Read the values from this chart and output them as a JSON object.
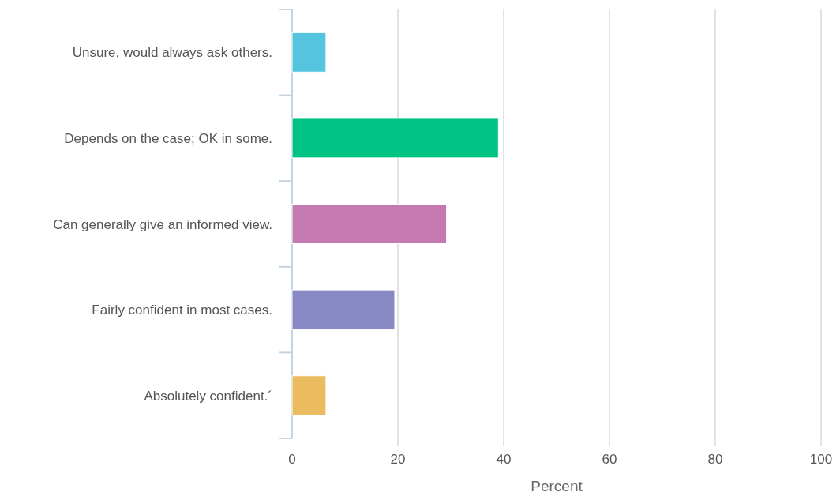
{
  "chart_data": {
    "type": "bar",
    "orientation": "horizontal",
    "xlabel": "Percent",
    "categories": [
      "Unsure, would always ask others.",
      "Depends on the case; OK in some.",
      "Can generally give an informed view.",
      "Fairly confident in most cases.",
      "Absolutely confident.´"
    ],
    "values": [
      6.4,
      39.0,
      29.2,
      19.4,
      6.4
    ],
    "colors": [
      "#55c4de",
      "#00c283",
      "#c47ab0",
      "#8789c5",
      "#ebbb60"
    ],
    "xlim": [
      0,
      100
    ],
    "xticks": [
      0,
      20,
      40,
      60,
      80,
      100
    ],
    "grid": "x"
  }
}
